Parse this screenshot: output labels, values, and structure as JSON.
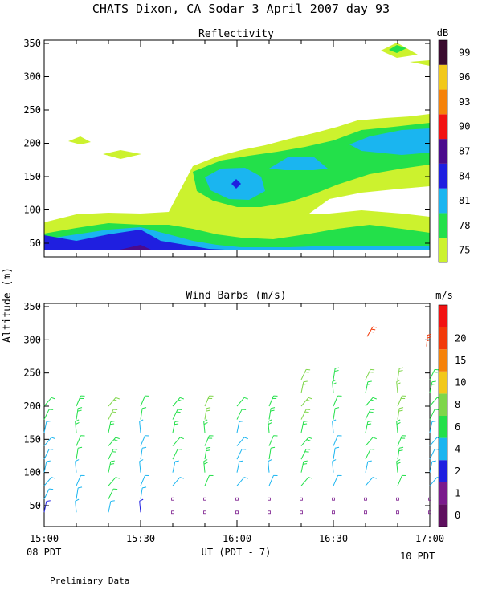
{
  "title": "CHATS Dixon, CA  Sodar   3 April 2007  day  93",
  "footer_note": "Prelimiary Data",
  "ylabel": "Altitude (m)",
  "xlabel": "UT  (PDT - 7)",
  "x_ticks": [
    "15:00",
    "15:30",
    "16:00",
    "16:30",
    "17:00"
  ],
  "x_left_note": "08 PDT",
  "x_right_note": "10 PDT",
  "chart_data": [
    {
      "type": "heatmap",
      "title": "Reflectivity",
      "ylim": [
        25,
        355
      ],
      "yticks": [
        50,
        100,
        150,
        200,
        250,
        300,
        350
      ],
      "colorbar_unit": "dB",
      "colorbar_levels": [
        75,
        78,
        81,
        84,
        87,
        90,
        93,
        96,
        99
      ],
      "colorbar_colors": [
        "#ccf22e",
        "#23e04a",
        "#1ab5f0",
        "#1f1fe0",
        "#4b0b8c",
        "#f21212",
        "#f5820a",
        "#f2c81a",
        "#3a0b2e"
      ],
      "summary": "Echo layer from ~40 m up to ~240 m; strongest returns (84–87 dB) near surface 15:00–15:40 and a core near 16:00 at ~140 m; isolated 75 dB patches near 200 m at 15:10–15:25 and 16:50–17:00 near 340 m"
    },
    {
      "type": "scatter",
      "title": "Wind Barbs (m/s)",
      "ylim": [
        25,
        355
      ],
      "yticks": [
        50,
        100,
        150,
        200,
        250,
        300,
        350
      ],
      "colorbar_unit": "m/s",
      "colorbar_ticks": [
        "0",
        "1",
        "2",
        "4",
        "6",
        "8",
        "10",
        "15",
        "20"
      ],
      "colorbar_colors": [
        "#5e0f5e",
        "#7a1a8c",
        "#1f1fe0",
        "#1ab5f0",
        "#23e04a",
        "#7ed64a",
        "#f2c81a",
        "#f5820a",
        "#f23a0a",
        "#f21212"
      ],
      "columns_time": [
        "15:00",
        "15:10",
        "15:20",
        "15:30",
        "15:40",
        "15:50",
        "16:00",
        "16:10",
        "16:20",
        "16:30",
        "16:40",
        "16:50",
        "17:00"
      ],
      "max_wind_note": "max ~20 m/s at 290–310 m near 16:40–17:00"
    }
  ]
}
